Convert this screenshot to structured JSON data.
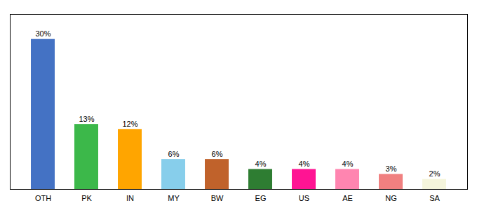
{
  "chart_data": {
    "type": "bar",
    "categories": [
      "OTH",
      "PK",
      "IN",
      "MY",
      "BW",
      "EG",
      "US",
      "AE",
      "NG",
      "SA"
    ],
    "values": [
      30,
      13,
      12,
      6,
      6,
      4,
      4,
      4,
      3,
      2
    ],
    "value_labels": [
      "30%",
      "13%",
      "12%",
      "6%",
      "6%",
      "4%",
      "4%",
      "4%",
      "3%",
      "2%"
    ],
    "colors": [
      "#4472C4",
      "#3CB84A",
      "#FFA500",
      "#87CEEB",
      "#C0622B",
      "#2E7D32",
      "#FF1493",
      "#FF85B0",
      "#F08080",
      "#F5F5DC"
    ],
    "ylim": [
      0,
      35
    ],
    "data_labels": true,
    "tick_labels": "x"
  }
}
